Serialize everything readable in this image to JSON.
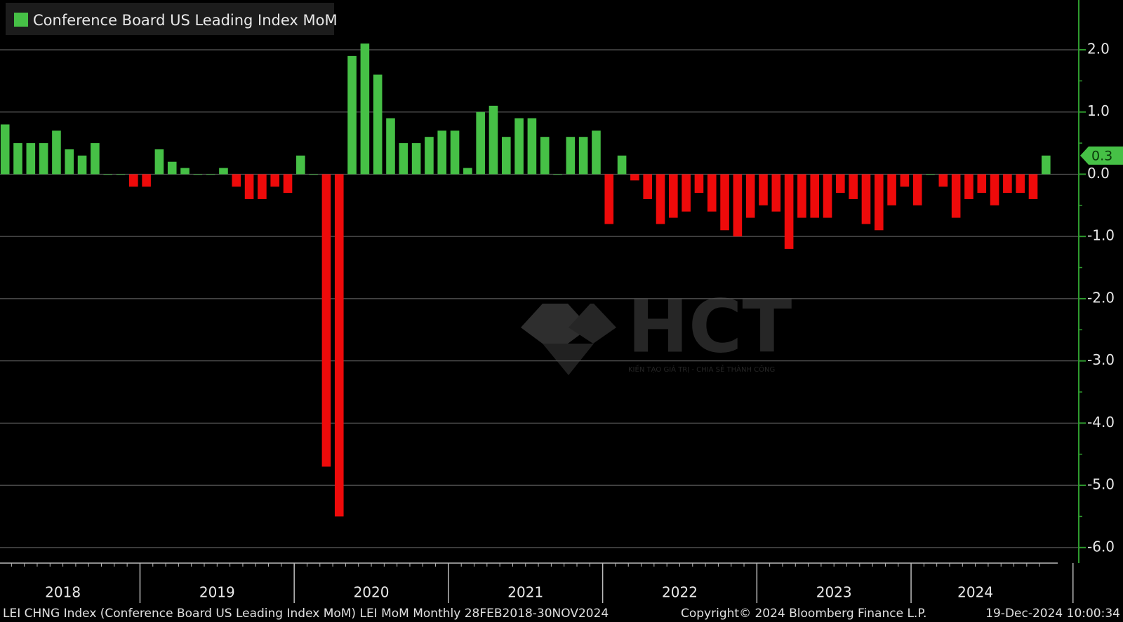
{
  "chart_data": {
    "type": "bar",
    "series": [
      {
        "name": "Conference Board US Leading Index MoM",
        "color": "#46c046",
        "negative_color": "#ee0a0a",
        "values": [
          0.8,
          0.5,
          0.5,
          0.5,
          0.7,
          0.4,
          0.3,
          0.5,
          0,
          0,
          -0.2,
          -0.2,
          0.4,
          0.2,
          0.1,
          0,
          0,
          0.1,
          -0.2,
          -0.4,
          -0.4,
          -0.2,
          -0.3,
          0.3,
          0,
          -4.7,
          -5.5,
          1.9,
          2.1,
          1.6,
          0.9,
          0.5,
          0.5,
          0.6,
          0.7,
          0.7,
          0.1,
          1.0,
          1.1,
          0.6,
          0.9,
          0.9,
          0.6,
          0,
          0.6,
          0.6,
          0.7,
          -0.8,
          0.3,
          -0.1,
          -0.4,
          -0.8,
          -0.7,
          -0.6,
          -0.3,
          -0.6,
          -0.9,
          -1.0,
          -0.7,
          -0.5,
          -0.6,
          -1.2,
          -0.7,
          -0.7,
          -0.7,
          -0.3,
          -0.4,
          -0.8,
          -0.9,
          -0.5,
          -0.2,
          -0.5,
          0,
          -0.2,
          -0.7,
          -0.4,
          -0.3,
          -0.5,
          -0.3,
          -0.3,
          -0.4,
          0.3
        ]
      }
    ],
    "categories": [
      null,
      null,
      null,
      null,
      null,
      "2018",
      null,
      null,
      null,
      null,
      null,
      null,
      null,
      null,
      null,
      null,
      null,
      "2019",
      null,
      null,
      null,
      null,
      null,
      null,
      null,
      null,
      null,
      null,
      null,
      "2020",
      null,
      null,
      null,
      null,
      null,
      null,
      null,
      null,
      null,
      null,
      null,
      "2021",
      null,
      null,
      null,
      null,
      null,
      null,
      null,
      null,
      null,
      null,
      null,
      "2022",
      null,
      null,
      null,
      null,
      null,
      null,
      null,
      null,
      null,
      null,
      null,
      "2023",
      null,
      null,
      null,
      null,
      null,
      null,
      null,
      null,
      null,
      null,
      "2024",
      null,
      null,
      null,
      null,
      null
    ],
    "ylim": [
      -6.25,
      2.8
    ],
    "yticks": [
      {
        "value": 2,
        "label": "2.0"
      },
      {
        "value": 1,
        "label": "1.0"
      },
      {
        "value": 0,
        "label": "0.0"
      },
      {
        "value": -1,
        "label": "-1.0"
      },
      {
        "value": -2,
        "label": "-2.0"
      },
      {
        "value": -3,
        "label": "-3.0"
      },
      {
        "value": -4,
        "label": "-4.0"
      },
      {
        "value": -5,
        "label": "-5.0"
      },
      {
        "value": -6,
        "label": "-6.0"
      }
    ],
    "grid": true,
    "source": "LEI CHNG Index (Conference Board US Leading Index MoM) LEI MoM  Monthly 28FEB2018-30NOV2024",
    "copyright": "Copyright© 2024 Bloomberg Finance L.P.",
    "timestamp": "19-Dec-2024 10:00:34",
    "watermark": {
      "brand": "HCT",
      "slogan": "KIẾN TẠO GIÁ TRỊ - CHIA SẺ THÀNH CÔNG"
    }
  }
}
